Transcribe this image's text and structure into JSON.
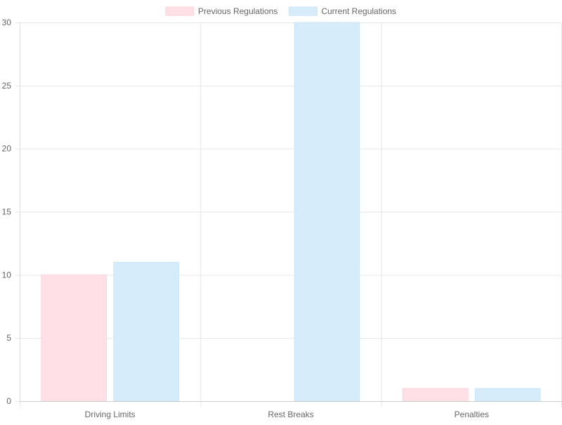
{
  "chart_data": {
    "type": "bar",
    "categories": [
      "Driving Limits",
      "Rest Breaks",
      "Penalties"
    ],
    "series": [
      {
        "name": "Previous Regulations",
        "values": [
          10,
          0,
          1
        ],
        "color": "#ffe0e6",
        "border_color": "#fdd3dc"
      },
      {
        "name": "Current Regulations",
        "values": [
          11,
          30,
          1
        ],
        "color": "#d7ecfb",
        "border_color": "#c9e6fa"
      }
    ],
    "ylim": [
      0,
      30
    ],
    "yticks": [
      0,
      5,
      10,
      15,
      20,
      25,
      30
    ],
    "grid": true,
    "legend_position": "top-center",
    "gridline_color": "#e6e6e6",
    "tick_label_color": "#666666"
  }
}
